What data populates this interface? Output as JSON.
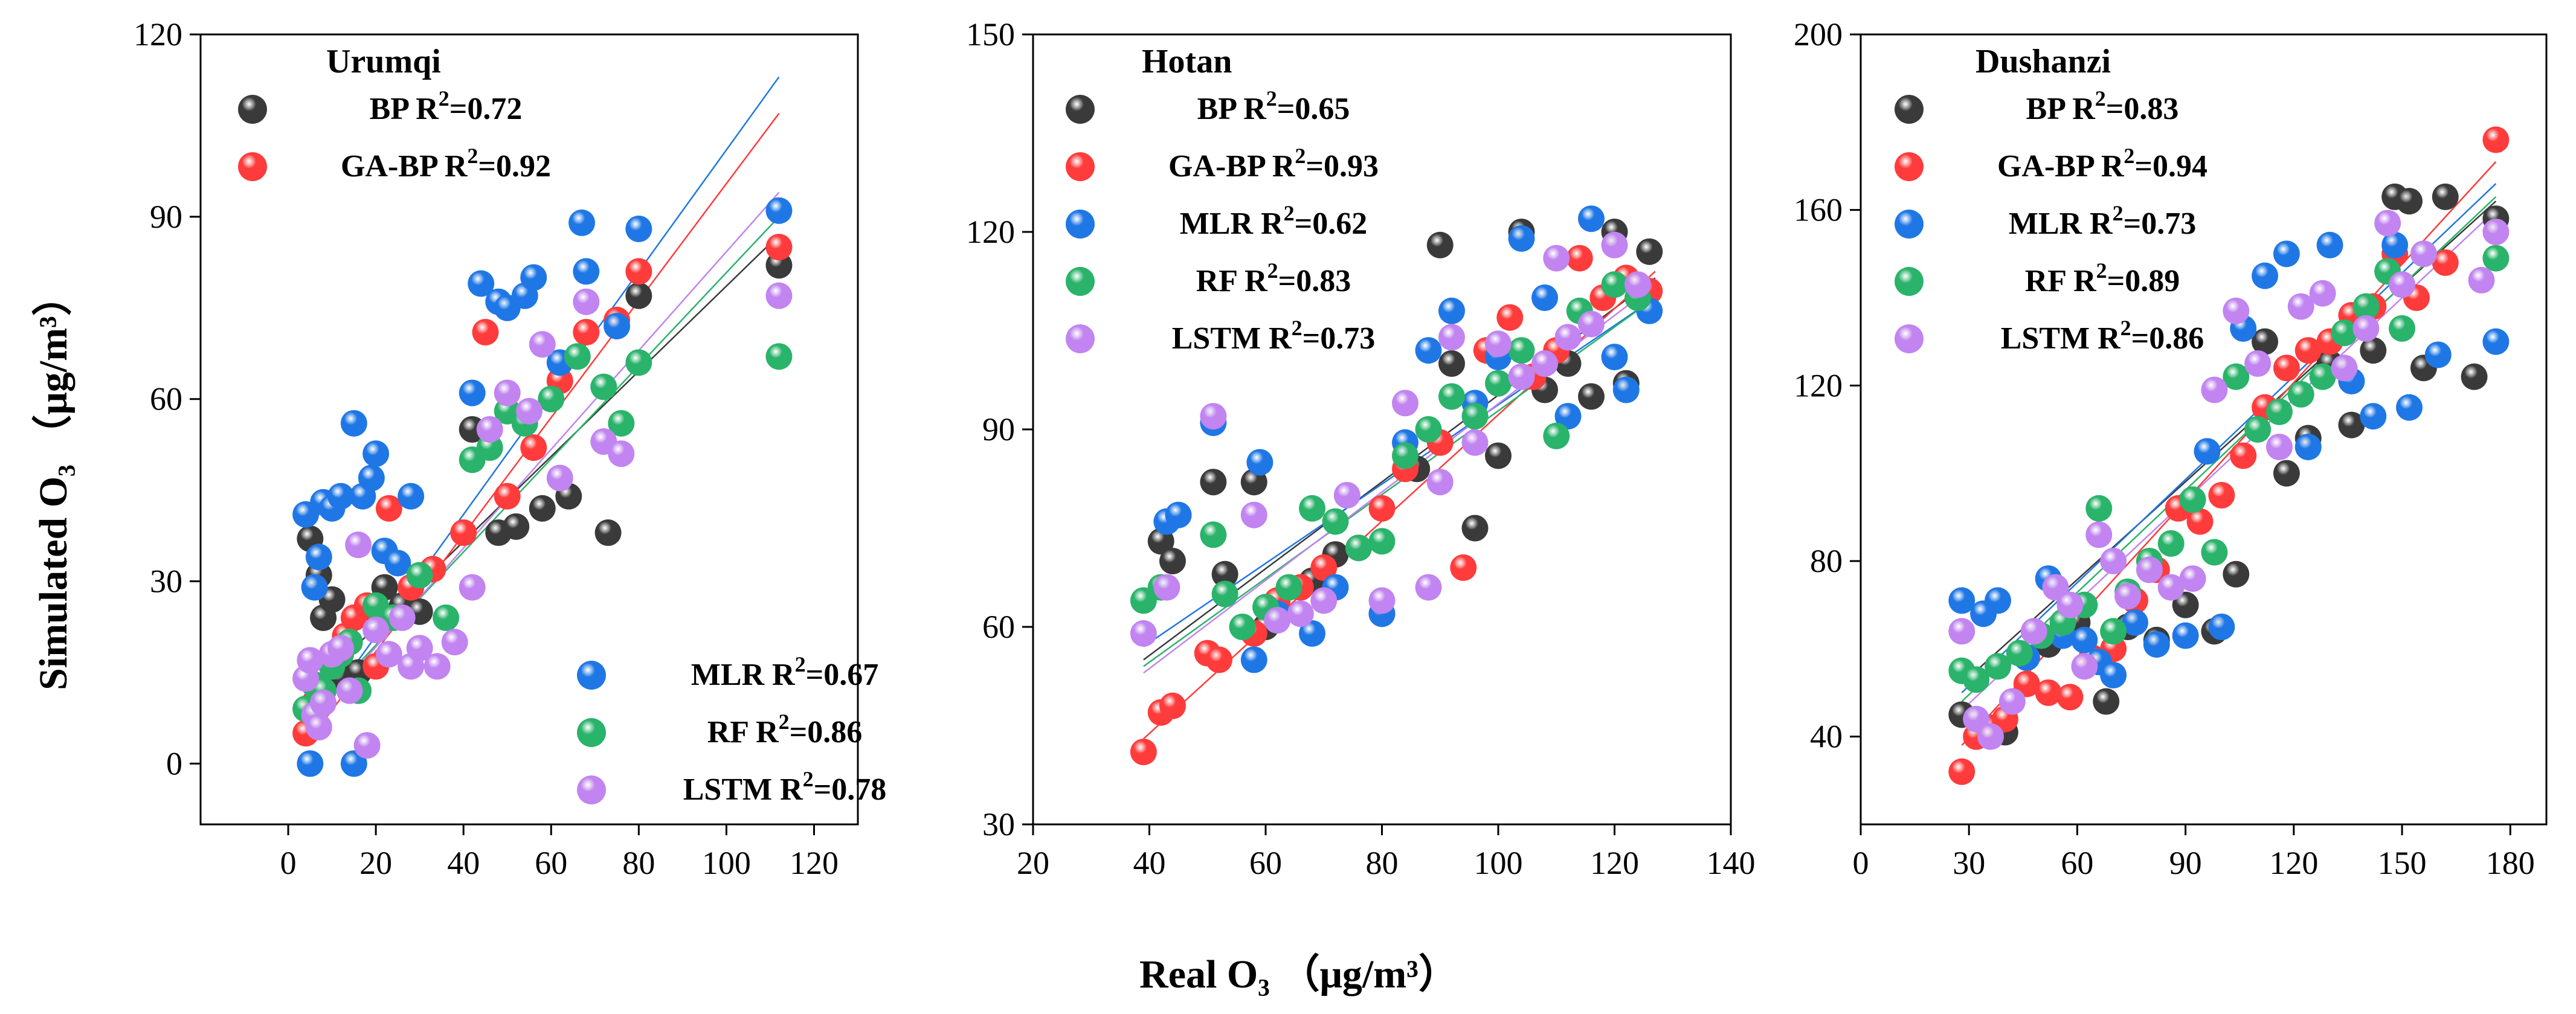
{
  "figure": {
    "xlabel": "Real  O₃ （μg/m³）",
    "ylabel": "Simulated  O₃ （μg/m³）"
  },
  "series_colors": {
    "BP": "#3a3a3a",
    "GA-BP": "#ff3b3b",
    "MLR": "#1f77e6",
    "RF": "#2ab36a",
    "LSTM": "#c184f0"
  },
  "chart_data": [
    {
      "type": "scatter",
      "title": "Urumqi",
      "xlim": [
        -20,
        130
      ],
      "ylim": [
        -10,
        120
      ],
      "xticks": [
        0,
        20,
        40,
        60,
        80,
        100,
        120
      ],
      "yticks": [
        0,
        30,
        60,
        90,
        120
      ],
      "grid": false,
      "legend": [
        {
          "name": "BP",
          "label": "BP R²=0.72",
          "placement": "top-left"
        },
        {
          "name": "GA-BP",
          "label": "GA-BP R²=0.92",
          "placement": "top-left"
        },
        {
          "name": "MLR",
          "label": "MLR R²=0.67",
          "placement": "bottom-right"
        },
        {
          "name": "RF",
          "label": "RF R²=0.86",
          "placement": "bottom-right"
        },
        {
          "name": "LSTM",
          "label": "LSTM R²=0.78",
          "placement": "bottom-right"
        }
      ],
      "series": [
        {
          "name": "BP",
          "fit": [
            [
              5,
              12
            ],
            [
              112,
              87
            ]
          ],
          "x": [
            5,
            7,
            8,
            10,
            12,
            14,
            16,
            18,
            22,
            26,
            30,
            42,
            48,
            52,
            58,
            64,
            73,
            80,
            112
          ],
          "y": [
            37,
            31,
            24,
            27,
            14,
            20,
            15,
            25,
            29,
            26,
            25,
            55,
            38,
            39,
            42,
            44,
            38,
            77,
            82
          ]
        },
        {
          "name": "GA-BP",
          "fit": [
            [
              5,
              4
            ],
            [
              112,
              107
            ]
          ],
          "x": [
            4,
            6,
            8,
            10,
            13,
            15,
            18,
            20,
            23,
            28,
            33,
            40,
            45,
            50,
            56,
            62,
            68,
            75,
            80,
            112
          ],
          "y": [
            5,
            10,
            12,
            18,
            21,
            24,
            26,
            16,
            42,
            29,
            32,
            38,
            71,
            44,
            52,
            63,
            71,
            73,
            81,
            85
          ]
        },
        {
          "name": "MLR",
          "fit": [
            [
              5,
              6
            ],
            [
              112,
              113
            ]
          ],
          "x": [
            4,
            5,
            6,
            7,
            8,
            10,
            12,
            15,
            15,
            17,
            19,
            20,
            22,
            25,
            28,
            42,
            44,
            48,
            50,
            54,
            56,
            62,
            67,
            68,
            75,
            80,
            112
          ],
          "y": [
            41,
            0,
            29,
            34,
            43,
            42,
            44,
            0,
            56,
            44,
            47,
            51,
            35,
            33,
            44,
            61,
            79,
            76,
            75,
            77,
            80,
            66,
            89,
            81,
            72,
            88,
            91
          ]
        },
        {
          "name": "RF",
          "fit": [
            [
              5,
              8
            ],
            [
              112,
              90
            ]
          ],
          "x": [
            4,
            6,
            8,
            10,
            12,
            14,
            16,
            20,
            24,
            30,
            36,
            42,
            46,
            50,
            54,
            60,
            66,
            72,
            76,
            80,
            112
          ],
          "y": [
            9,
            13,
            12,
            16,
            18,
            20,
            12,
            26,
            24,
            31,
            24,
            50,
            52,
            58,
            56,
            60,
            67,
            62,
            56,
            66,
            67
          ]
        },
        {
          "name": "LSTM",
          "fit": [
            [
              5,
              7
            ],
            [
              112,
              94
            ]
          ],
          "x": [
            4,
            5,
            6,
            7,
            8,
            10,
            12,
            14,
            16,
            18,
            20,
            23,
            26,
            28,
            30,
            34,
            38,
            42,
            46,
            50,
            55,
            58,
            62,
            68,
            72,
            76,
            112
          ],
          "y": [
            14,
            17,
            8,
            6,
            10,
            18,
            19,
            12,
            36,
            3,
            22,
            18,
            24,
            16,
            19,
            16,
            20,
            29,
            55,
            61,
            58,
            69,
            47,
            76,
            53,
            51,
            77
          ]
        }
      ]
    },
    {
      "type": "scatter",
      "title": "Hotan",
      "xlim": [
        20,
        140
      ],
      "ylim": [
        30,
        150
      ],
      "xticks": [
        20,
        40,
        60,
        80,
        100,
        120,
        140
      ],
      "yticks": [
        30,
        60,
        90,
        120,
        150
      ],
      "grid": false,
      "legend": [
        {
          "name": "BP",
          "label": "BP R²=0.65",
          "placement": "top-left"
        },
        {
          "name": "GA-BP",
          "label": "GA-BP R²=0.93",
          "placement": "top-left"
        },
        {
          "name": "MLR",
          "label": "MLR R²=0.62",
          "placement": "top-left"
        },
        {
          "name": "RF",
          "label": "RF R²=0.83",
          "placement": "top-left"
        },
        {
          "name": "LSTM",
          "label": "LSTM R²=0.73",
          "placement": "top-left"
        }
      ],
      "series": [
        {
          "name": "BP",
          "fit": [
            [
              39,
              55
            ],
            [
              127,
              113
            ]
          ],
          "x": [
            42,
            44,
            51,
            53,
            58,
            60,
            68,
            72,
            80,
            86,
            90,
            92,
            96,
            100,
            104,
            108,
            112,
            116,
            120,
            122,
            126
          ],
          "y": [
            73,
            70,
            82,
            68,
            82,
            60,
            67,
            71,
            62,
            84,
            118,
            100,
            75,
            86,
            120,
            96,
            100,
            95,
            120,
            97,
            117
          ]
        },
        {
          "name": "GA-BP",
          "fit": [
            [
              39,
              43
            ],
            [
              127,
              114
            ]
          ],
          "x": [
            39,
            42,
            44,
            50,
            52,
            58,
            62,
            66,
            70,
            76,
            80,
            84,
            90,
            94,
            98,
            102,
            106,
            110,
            114,
            118,
            122,
            126
          ],
          "y": [
            41,
            47,
            48,
            56,
            55,
            59,
            64,
            66,
            69,
            72,
            78,
            84,
            88,
            69,
            102,
            107,
            98,
            102,
            116,
            110,
            113,
            111
          ]
        },
        {
          "name": "MLR",
          "fit": [
            [
              39,
              57
            ],
            [
              127,
              110
            ]
          ],
          "x": [
            43,
            45,
            51,
            58,
            59,
            62,
            68,
            72,
            80,
            84,
            88,
            92,
            96,
            100,
            104,
            108,
            112,
            116,
            120,
            122,
            126
          ],
          "y": [
            76,
            77,
            91,
            55,
            85,
            62,
            59,
            66,
            62,
            88,
            102,
            108,
            94,
            101,
            119,
            110,
            92,
            122,
            101,
            96,
            108
          ]
        },
        {
          "name": "RF",
          "fit": [
            [
              39,
              54
            ],
            [
              127,
              110
            ]
          ],
          "x": [
            39,
            42,
            51,
            53,
            56,
            60,
            64,
            68,
            72,
            76,
            80,
            84,
            88,
            92,
            96,
            100,
            104,
            110,
            114,
            120,
            124
          ],
          "y": [
            64,
            66,
            74,
            65,
            60,
            63,
            66,
            78,
            76,
            72,
            73,
            86,
            90,
            95,
            92,
            97,
            102,
            89,
            108,
            112,
            110
          ]
        },
        {
          "name": "LSTM",
          "fit": [
            [
              39,
              53
            ],
            [
              127,
              112
            ]
          ],
          "x": [
            39,
            43,
            51,
            58,
            62,
            66,
            70,
            74,
            80,
            84,
            88,
            90,
            92,
            96,
            100,
            104,
            108,
            110,
            112,
            116,
            120,
            124
          ],
          "y": [
            59,
            66,
            92,
            77,
            61,
            62,
            64,
            80,
            64,
            94,
            66,
            82,
            104,
            88,
            103,
            98,
            100,
            116,
            104,
            106,
            118,
            112
          ]
        }
      ]
    },
    {
      "type": "scatter",
      "title": "Dushanzi",
      "xlim": [
        0,
        190
      ],
      "ylim": [
        20,
        200
      ],
      "xticks": [
        0,
        30,
        60,
        90,
        120,
        150,
        180
      ],
      "yticks": [
        40,
        80,
        120,
        160,
        200
      ],
      "grid": false,
      "legend": [
        {
          "name": "BP",
          "label": "BP R²=0.83",
          "placement": "top-left"
        },
        {
          "name": "GA-BP",
          "label": "GA-BP R²=0.94",
          "placement": "top-left"
        },
        {
          "name": "MLR",
          "label": "MLR R²=0.73",
          "placement": "top-left"
        },
        {
          "name": "RF",
          "label": "RF R²=0.89",
          "placement": "top-left"
        },
        {
          "name": "LSTM",
          "label": "LSTM R²=0.86",
          "placement": "top-left"
        }
      ],
      "series": [
        {
          "name": "BP",
          "fit": [
            [
              28,
              52
            ],
            [
              176,
              162
            ]
          ],
          "x": [
            28,
            34,
            40,
            46,
            52,
            60,
            68,
            74,
            82,
            90,
            98,
            104,
            112,
            118,
            124,
            130,
            136,
            142,
            148,
            152,
            156,
            162,
            170,
            176
          ],
          "y": [
            45,
            42,
            41,
            58,
            61,
            66,
            48,
            65,
            62,
            70,
            64,
            77,
            130,
            100,
            108,
            125,
            111,
            128,
            163,
            162,
            124,
            163,
            122,
            158
          ]
        },
        {
          "name": "GA-BP",
          "fit": [
            [
              28,
              38
            ],
            [
              176,
              171
            ]
          ],
          "x": [
            28,
            32,
            36,
            40,
            46,
            52,
            58,
            64,
            70,
            76,
            82,
            88,
            94,
            100,
            106,
            112,
            118,
            124,
            130,
            136,
            142,
            148,
            154,
            162,
            176
          ],
          "y": [
            32,
            40,
            42,
            44,
            52,
            50,
            49,
            58,
            60,
            71,
            78,
            92,
            89,
            95,
            104,
            115,
            124,
            128,
            130,
            136,
            138,
            150,
            140,
            148,
            176
          ]
        },
        {
          "name": "MLR",
          "fit": [
            [
              28,
              50
            ],
            [
              176,
              166
            ]
          ],
          "x": [
            28,
            34,
            38,
            46,
            52,
            56,
            62,
            66,
            70,
            76,
            82,
            90,
            96,
            100,
            106,
            112,
            118,
            124,
            130,
            136,
            142,
            148,
            152,
            160,
            176
          ],
          "y": [
            71,
            68,
            71,
            58,
            76,
            63,
            62,
            57,
            54,
            66,
            61,
            63,
            105,
            65,
            133,
            145,
            150,
            106,
            152,
            121,
            113,
            152,
            115,
            127,
            130
          ]
        },
        {
          "name": "RF",
          "fit": [
            [
              28,
              48
            ],
            [
              176,
              163
            ]
          ],
          "x": [
            28,
            32,
            38,
            44,
            50,
            56,
            62,
            66,
            70,
            74,
            80,
            86,
            92,
            98,
            104,
            110,
            116,
            122,
            128,
            134,
            140,
            146,
            150,
            156,
            176
          ],
          "y": [
            55,
            53,
            56,
            59,
            63,
            66,
            70,
            92,
            64,
            73,
            80,
            84,
            94,
            82,
            122,
            110,
            114,
            118,
            122,
            132,
            138,
            146,
            133,
            150,
            149
          ]
        },
        {
          "name": "LSTM",
          "fit": [
            [
              28,
              46
            ],
            [
              176,
              160
            ]
          ],
          "x": [
            28,
            32,
            36,
            42,
            48,
            54,
            58,
            62,
            66,
            70,
            74,
            80,
            86,
            92,
            98,
            104,
            110,
            116,
            122,
            128,
            134,
            140,
            146,
            150,
            156,
            172,
            176
          ],
          "y": [
            64,
            44,
            40,
            48,
            64,
            74,
            70,
            56,
            86,
            80,
            72,
            78,
            74,
            76,
            119,
            137,
            125,
            106,
            138,
            141,
            124,
            133,
            157,
            143,
            150,
            144,
            155
          ]
        }
      ]
    }
  ]
}
